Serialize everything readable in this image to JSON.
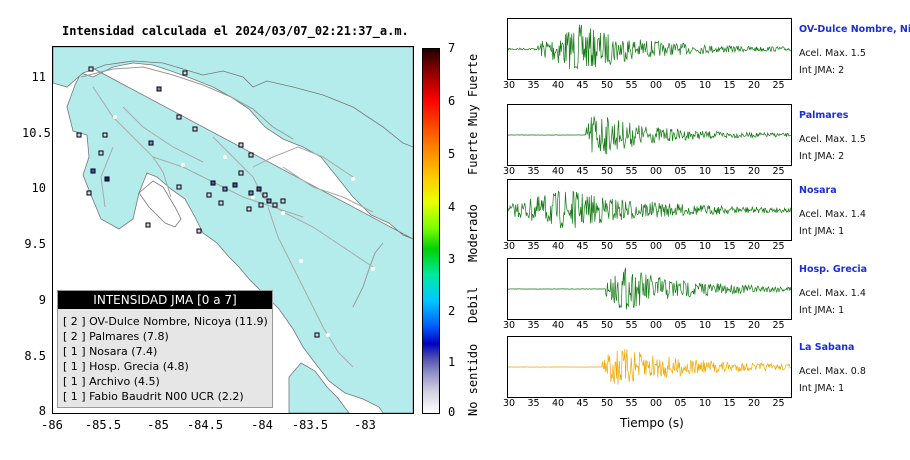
{
  "map": {
    "title": "Intensidad calculada el 2024/03/07_02:21:37_a.m.",
    "y_ticks": [
      "11",
      "10.5",
      "10",
      "9.5",
      "9",
      "8.5",
      "8"
    ],
    "x_ticks": [
      "-86",
      "-85.5",
      "-85",
      "-84.5",
      "-84",
      "-83.5",
      "-83"
    ],
    "land_color": "#b4ecec",
    "sea_color": "#ffffff"
  },
  "colorbar": {
    "ticks": [
      "7",
      "6",
      "5",
      "4",
      "3",
      "2",
      "1",
      "0"
    ],
    "categories": [
      "Muy Fuerte",
      "Fuerte",
      "Moderado",
      "Debil",
      "No sentido"
    ]
  },
  "legend": {
    "title": "INTENSIDAD JMA [0 a 7]",
    "rows": [
      "[ 2 ]  OV-Dulce Nombre, Nicoya (11.9)",
      "[ 2 ]  Palmares (7.8)",
      "[ 1 ]  Nosara (7.4)",
      "[ 1 ]  Hosp. Grecia (4.8)",
      "[ 1 ]  Archivo (4.5)",
      "[ 1 ]  Fabio Baudrit N00 UCR (2.2)"
    ]
  },
  "traces": {
    "x_ticks": [
      "30",
      "35",
      "40",
      "45",
      "50",
      "55",
      "00",
      "05",
      "10",
      "15",
      "20",
      "25"
    ],
    "x_title": "Tiempo (s)",
    "stations": [
      {
        "name": "OV-Dulce Nombre, Nicoya",
        "accel": "Acel. Max. 1.5",
        "jma": "Int JMA: 2",
        "color": "#127a12"
      },
      {
        "name": "Palmares",
        "accel": "Acel. Max. 1.5",
        "jma": "Int JMA: 2",
        "color": "#127a12"
      },
      {
        "name": "Nosara",
        "accel": "Acel. Max. 1.4",
        "jma": "Int JMA: 1",
        "color": "#127a12"
      },
      {
        "name": "Hosp. Grecia",
        "accel": "Acel. Max. 1.4",
        "jma": "Int JMA: 1",
        "color": "#127a12"
      },
      {
        "name": "La Sabana",
        "accel": "Acel. Max. 0.8",
        "jma": "Int JMA: 1",
        "color": "#f0a800"
      }
    ]
  }
}
